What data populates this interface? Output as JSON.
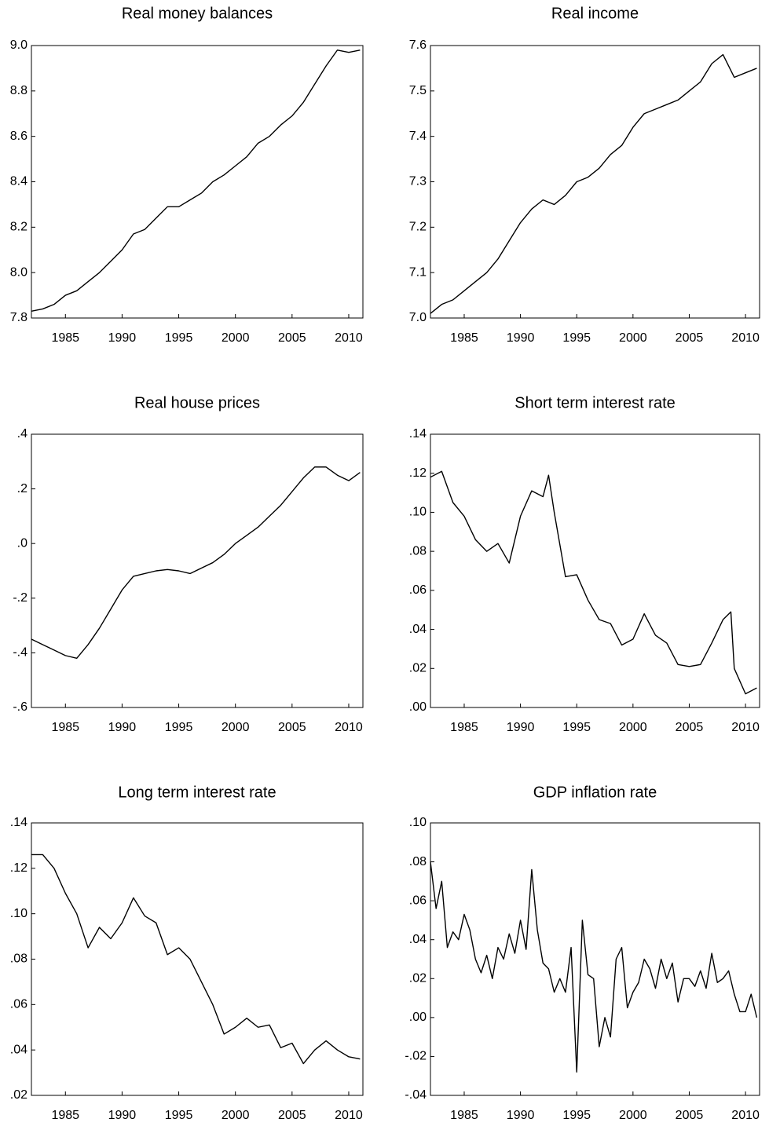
{
  "chart_data": [
    {
      "type": "line",
      "title": "Real money balances",
      "x": [
        1982,
        1983,
        1984,
        1985,
        1986,
        1987,
        1988,
        1989,
        1990,
        1991,
        1992,
        1993,
        1994,
        1995,
        1996,
        1997,
        1998,
        1999,
        2000,
        2001,
        2002,
        2003,
        2004,
        2005,
        2006,
        2007,
        2008,
        2009,
        2010,
        2011
      ],
      "values": [
        7.83,
        7.84,
        7.86,
        7.9,
        7.92,
        7.96,
        8.0,
        8.05,
        8.1,
        8.17,
        8.19,
        8.24,
        8.29,
        8.29,
        8.32,
        8.35,
        8.4,
        8.43,
        8.47,
        8.51,
        8.57,
        8.6,
        8.65,
        8.69,
        8.75,
        8.83,
        8.91,
        8.98,
        8.97,
        8.98
      ],
      "color": "#000000",
      "xlim": [
        1982,
        2011.25
      ],
      "xticks": [
        1985,
        1990,
        1995,
        2000,
        2005,
        2010
      ],
      "ylim": [
        7.8,
        9.0
      ],
      "yticks": [
        7.8,
        {
          "value": 8,
          "label": "8.0"
        },
        8.2,
        8.4,
        8.6,
        8.8,
        {
          "value": 9,
          "label": "9.0"
        }
      ]
    },
    {
      "type": "line",
      "title": "Real income",
      "x": [
        1982,
        1983,
        1984,
        1985,
        1986,
        1987,
        1988,
        1989,
        1990,
        1991,
        1992,
        1993,
        1994,
        1995,
        1996,
        1997,
        1998,
        1999,
        2000,
        2001,
        2002,
        2003,
        2004,
        2005,
        2006,
        2007,
        2008,
        2009,
        2010,
        2011
      ],
      "values": [
        7.01,
        7.03,
        7.04,
        7.06,
        7.08,
        7.1,
        7.13,
        7.17,
        7.21,
        7.24,
        7.26,
        7.25,
        7.27,
        7.3,
        7.31,
        7.33,
        7.36,
        7.38,
        7.42,
        7.45,
        7.46,
        7.47,
        7.48,
        7.5,
        7.52,
        7.56,
        7.58,
        7.53,
        7.54,
        7.55
      ],
      "color": "#000000",
      "xlim": [
        1982,
        2011.25
      ],
      "xticks": [
        1985,
        1990,
        1995,
        2000,
        2005,
        2010
      ],
      "ylim": [
        7.0,
        7.6
      ],
      "yticks": [
        {
          "value": 7,
          "label": "7.0"
        },
        7.1,
        7.2,
        7.3,
        7.4,
        7.5,
        7.6
      ]
    },
    {
      "type": "line",
      "title": "Real house prices",
      "x": [
        1982,
        1983,
        1984,
        1985,
        1986,
        1987,
        1988,
        1989,
        1990,
        1991,
        1992,
        1993,
        1994,
        1995,
        1996,
        1997,
        1998,
        1999,
        2000,
        2001,
        2002,
        2003,
        2004,
        2005,
        2006,
        2007,
        2008,
        2009,
        2010,
        2011
      ],
      "values": [
        -0.35,
        -0.37,
        -0.39,
        -0.41,
        -0.42,
        -0.37,
        -0.31,
        -0.24,
        -0.17,
        -0.12,
        -0.11,
        -0.1,
        -0.095,
        -0.1,
        -0.11,
        -0.09,
        -0.07,
        -0.04,
        0.0,
        0.03,
        0.06,
        0.1,
        0.14,
        0.19,
        0.24,
        0.28,
        0.28,
        0.25,
        0.23,
        0.26
      ],
      "color": "#000000",
      "xlim": [
        1982,
        2011.25
      ],
      "xticks": [
        1985,
        1990,
        1995,
        2000,
        2005,
        2010
      ],
      "ylim": [
        -0.6,
        0.4
      ],
      "yticks": [
        {
          "value": -0.6,
          "label": "-.6"
        },
        {
          "value": -0.4,
          "label": "-.4"
        },
        {
          "value": -0.2,
          "label": "-.2"
        },
        {
          "value": 0,
          "label": ".0"
        },
        {
          "value": 0.2,
          "label": ".2"
        },
        {
          "value": 0.4,
          "label": ".4"
        }
      ]
    },
    {
      "type": "line",
      "title": "Short term interest rate",
      "x": [
        1982,
        1983,
        1984,
        1985,
        1986,
        1987,
        1988,
        1989,
        1990,
        1991,
        1992,
        1992.5,
        1993,
        1994,
        1995,
        1996,
        1997,
        1998,
        1999,
        2000,
        2001,
        2002,
        2003,
        2004,
        2005,
        2006,
        2007,
        2008,
        2008.7,
        2009,
        2010,
        2011
      ],
      "values": [
        0.118,
        0.121,
        0.105,
        0.098,
        0.086,
        0.08,
        0.084,
        0.074,
        0.098,
        0.111,
        0.108,
        0.119,
        0.1,
        0.067,
        0.068,
        0.055,
        0.045,
        0.043,
        0.032,
        0.035,
        0.048,
        0.037,
        0.033,
        0.022,
        0.021,
        0.022,
        0.033,
        0.045,
        0.049,
        0.02,
        0.007,
        0.01
      ],
      "color": "#000000",
      "xlim": [
        1982,
        2011.25
      ],
      "xticks": [
        1985,
        1990,
        1995,
        2000,
        2005,
        2010
      ],
      "ylim": [
        0,
        0.14
      ],
      "yticks": [
        {
          "value": 0,
          "label": ".00"
        },
        {
          "value": 0.02,
          "label": ".02"
        },
        {
          "value": 0.04,
          "label": ".04"
        },
        {
          "value": 0.06,
          "label": ".06"
        },
        {
          "value": 0.08,
          "label": ".08"
        },
        {
          "value": 0.1,
          "label": ".10"
        },
        {
          "value": 0.12,
          "label": ".12"
        },
        {
          "value": 0.14,
          "label": ".14"
        }
      ]
    },
    {
      "type": "line",
      "title": "Long term interest rate",
      "x": [
        1982,
        1983,
        1984,
        1985,
        1986,
        1987,
        1988,
        1989,
        1990,
        1991,
        1992,
        1993,
        1994,
        1995,
        1996,
        1997,
        1998,
        1999,
        2000,
        2001,
        2002,
        2003,
        2004,
        2005,
        2006,
        2007,
        2008,
        2009,
        2010,
        2011
      ],
      "values": [
        0.126,
        0.126,
        0.12,
        0.109,
        0.1,
        0.085,
        0.094,
        0.089,
        0.096,
        0.107,
        0.099,
        0.096,
        0.082,
        0.085,
        0.08,
        0.07,
        0.06,
        0.047,
        0.05,
        0.054,
        0.05,
        0.051,
        0.041,
        0.043,
        0.034,
        0.04,
        0.044,
        0.04,
        0.037,
        0.036
      ],
      "color": "#000000",
      "xlim": [
        1982,
        2011.25
      ],
      "xticks": [
        1985,
        1990,
        1995,
        2000,
        2005,
        2010
      ],
      "ylim": [
        0.02,
        0.14
      ],
      "yticks": [
        {
          "value": 0.02,
          "label": ".02"
        },
        {
          "value": 0.04,
          "label": ".04"
        },
        {
          "value": 0.06,
          "label": ".06"
        },
        {
          "value": 0.08,
          "label": ".08"
        },
        {
          "value": 0.1,
          "label": ".10"
        },
        {
          "value": 0.12,
          "label": ".12"
        },
        {
          "value": 0.14,
          "label": ".14"
        }
      ]
    },
    {
      "type": "line",
      "title": "GDP inflation rate",
      "x": [
        1982,
        1982.5,
        1983,
        1983.5,
        1984,
        1984.5,
        1985,
        1985.5,
        1986,
        1986.5,
        1987,
        1987.5,
        1988,
        1988.5,
        1989,
        1989.5,
        1990,
        1990.5,
        1991,
        1991.5,
        1992,
        1992.5,
        1993,
        1993.5,
        1994,
        1994.5,
        1995,
        1995.5,
        1996,
        1996.5,
        1997,
        1997.5,
        1998,
        1998.5,
        1999,
        1999.5,
        2000,
        2000.5,
        2001,
        2001.5,
        2002,
        2002.5,
        2003,
        2003.5,
        2004,
        2004.5,
        2005,
        2005.5,
        2006,
        2006.5,
        2007,
        2007.5,
        2008,
        2008.5,
        2009,
        2009.5,
        2010,
        2010.5,
        2011
      ],
      "values": [
        0.08,
        0.056,
        0.07,
        0.036,
        0.044,
        0.04,
        0.053,
        0.045,
        0.03,
        0.023,
        0.032,
        0.02,
        0.036,
        0.03,
        0.043,
        0.033,
        0.05,
        0.035,
        0.076,
        0.045,
        0.028,
        0.025,
        0.013,
        0.02,
        0.013,
        0.036,
        -0.028,
        0.05,
        0.022,
        0.02,
        -0.015,
        0.0,
        -0.01,
        0.03,
        0.036,
        0.005,
        0.013,
        0.018,
        0.03,
        0.025,
        0.015,
        0.03,
        0.02,
        0.028,
        0.008,
        0.02,
        0.02,
        0.016,
        0.024,
        0.015,
        0.033,
        0.018,
        0.02,
        0.024,
        0.012,
        0.003,
        0.003,
        0.012,
        0.0
      ],
      "color": "#000000",
      "xlim": [
        1982,
        2011.25
      ],
      "xticks": [
        1985,
        1990,
        1995,
        2000,
        2005,
        2010
      ],
      "ylim": [
        -0.04,
        0.1
      ],
      "yticks": [
        {
          "value": -0.04,
          "label": "-.04"
        },
        {
          "value": -0.02,
          "label": "-.02"
        },
        {
          "value": 0,
          "label": ".00"
        },
        {
          "value": 0.02,
          "label": ".02"
        },
        {
          "value": 0.04,
          "label": ".04"
        },
        {
          "value": 0.06,
          "label": ".06"
        },
        {
          "value": 0.08,
          "label": ".08"
        },
        {
          "value": 0.1,
          "label": ".10"
        }
      ]
    }
  ]
}
